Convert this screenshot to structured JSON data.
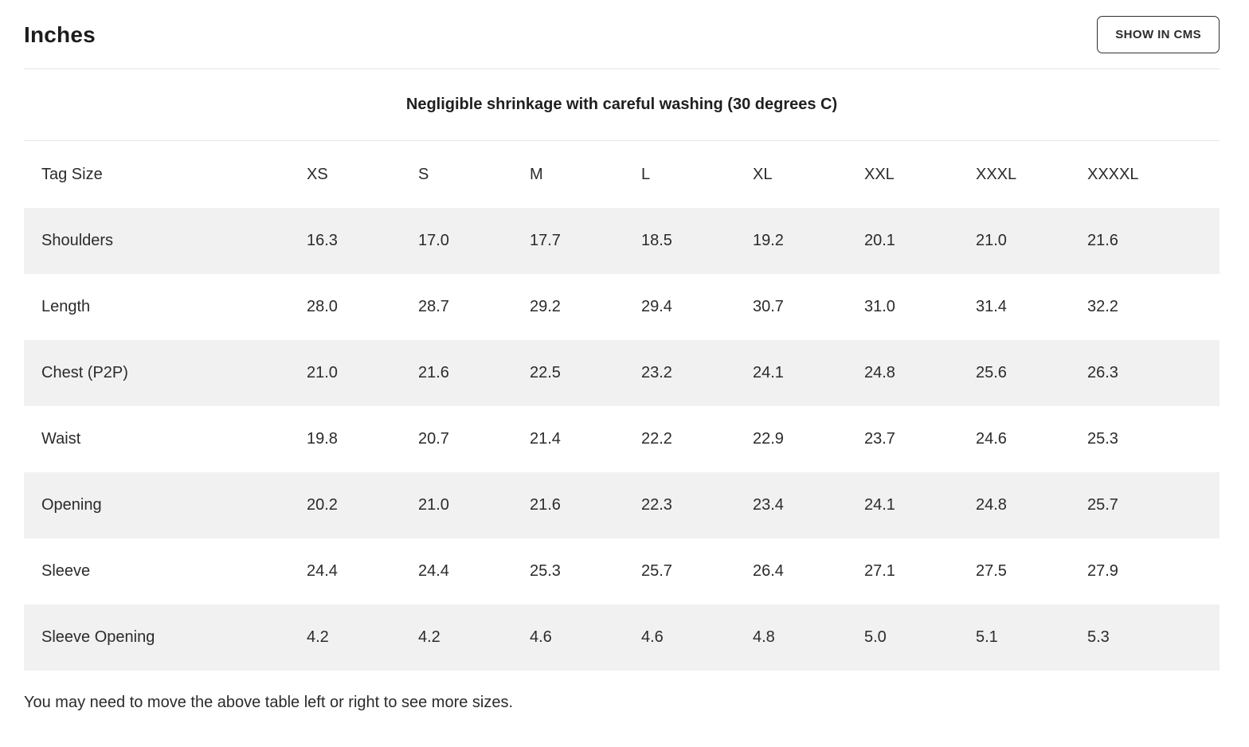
{
  "header": {
    "title": "Inches",
    "units_button_label": "SHOW IN CMS"
  },
  "shrinkage_note": "Negligible shrinkage with careful washing (30 degrees C)",
  "table": {
    "row_header_label": "Tag Size",
    "sizes": [
      "XS",
      "S",
      "M",
      "L",
      "XL",
      "XXL",
      "XXXL",
      "XXXXL"
    ],
    "rows": [
      {
        "label": "Shoulders",
        "values": [
          "16.3",
          "17.0",
          "17.7",
          "18.5",
          "19.2",
          "20.1",
          "21.0",
          "21.6"
        ]
      },
      {
        "label": "Length",
        "values": [
          "28.0",
          "28.7",
          "29.2",
          "29.4",
          "30.7",
          "31.0",
          "31.4",
          "32.2"
        ]
      },
      {
        "label": "Chest (P2P)",
        "values": [
          "21.0",
          "21.6",
          "22.5",
          "23.2",
          "24.1",
          "24.8",
          "25.6",
          "26.3"
        ]
      },
      {
        "label": "Waist",
        "values": [
          "19.8",
          "20.7",
          "21.4",
          "22.2",
          "22.9",
          "23.7",
          "24.6",
          "25.3"
        ]
      },
      {
        "label": "Opening",
        "values": [
          "20.2",
          "21.0",
          "21.6",
          "22.3",
          "23.4",
          "24.1",
          "24.8",
          "25.7"
        ]
      },
      {
        "label": "Sleeve",
        "values": [
          "24.4",
          "24.4",
          "25.3",
          "25.7",
          "26.4",
          "27.1",
          "27.5",
          "27.9"
        ]
      },
      {
        "label": "Sleeve Opening",
        "values": [
          "4.2",
          "4.2",
          "4.6",
          "4.6",
          "4.8",
          "5.0",
          "5.1",
          "5.3"
        ]
      }
    ]
  },
  "footer_note": "You may need to move the above table left or right to see more sizes.",
  "colors": {
    "stripe_row": "#f1f1f1",
    "text": "#2b2b2b",
    "divider": "#e6e6e6",
    "button_border": "#2f2f2f"
  }
}
